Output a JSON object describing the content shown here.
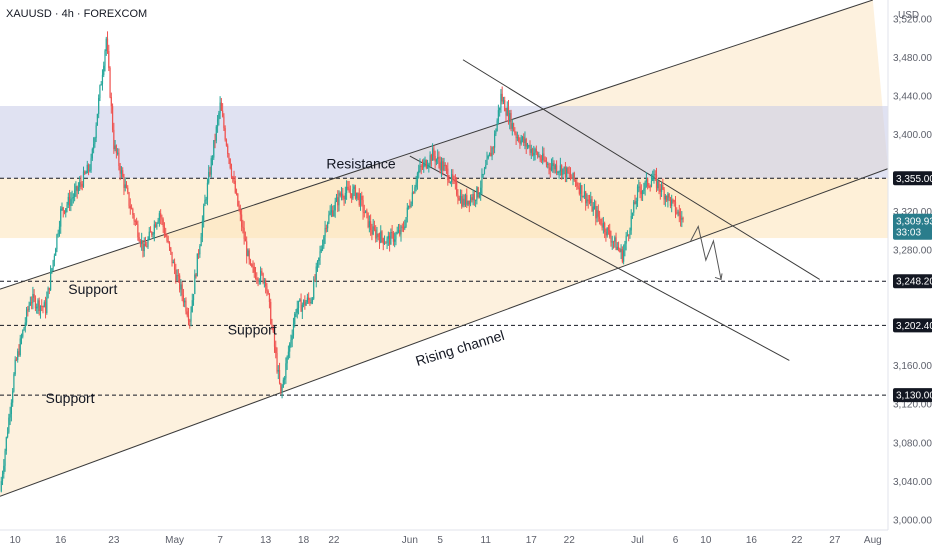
{
  "header": {
    "symbol_line": "XAUUSD · 4h · FOREXCOM"
  },
  "colors": {
    "up": "#26a69a",
    "down": "#ef5350",
    "last_price": "#2a7d8c",
    "level_tag": "#131722",
    "resistance_zone": "#c7cbe8",
    "support_zone": "#fde3b8",
    "channel_fill": "#fdf0da",
    "line": "#3a3a3a"
  },
  "chart_data": {
    "type": "candlestick",
    "timeframe": "4h",
    "currency_label": "USD",
    "y_ticks": [
      "3,520.00",
      "3,480.00",
      "3,440.00",
      "3,400.00",
      "3,320.00",
      "3,280.00",
      "3,160.00",
      "3,120.00",
      "3,080.00",
      "3,040.00",
      "3,000.00"
    ],
    "y_tick_values": [
      3520,
      3480,
      3440,
      3400,
      3320,
      3280,
      3160,
      3120,
      3080,
      3040,
      3000
    ],
    "x_ticks": [
      "10",
      "16",
      "23",
      "May",
      "7",
      "13",
      "18",
      "22",
      "Jun",
      "5",
      "11",
      "17",
      "22",
      "Jul",
      "6",
      "10",
      "16",
      "22",
      "27",
      "Aug"
    ],
    "x_tick_dates": [
      "2025-04-10",
      "2025-04-16",
      "2025-04-23",
      "2025-05-01",
      "2025-05-07",
      "2025-05-13",
      "2025-05-18",
      "2025-05-22",
      "2025-06-01",
      "2025-06-05",
      "2025-06-11",
      "2025-06-17",
      "2025-06-22",
      "2025-07-01",
      "2025-07-06",
      "2025-07-10",
      "2025-07-16",
      "2025-07-22",
      "2025-07-27",
      "2025-08-01"
    ],
    "ylim": [
      2990,
      3540
    ],
    "xlim": [
      "2025-04-08",
      "2025-08-03"
    ],
    "price_path": [
      [
        "2025-04-08",
        3030
      ],
      [
        "2025-04-10",
        3160
      ],
      [
        "2025-04-12",
        3230
      ],
      [
        "2025-04-14",
        3220
      ],
      [
        "2025-04-16",
        3320
      ],
      [
        "2025-04-18",
        3340
      ],
      [
        "2025-04-20",
        3370
      ],
      [
        "2025-04-22",
        3500
      ],
      [
        "2025-04-23",
        3390
      ],
      [
        "2025-04-25",
        3330
      ],
      [
        "2025-04-27",
        3280
      ],
      [
        "2025-04-29",
        3320
      ],
      [
        "2025-05-01",
        3260
      ],
      [
        "2025-05-03",
        3210
      ],
      [
        "2025-05-05",
        3330
      ],
      [
        "2025-05-07",
        3430
      ],
      [
        "2025-05-09",
        3340
      ],
      [
        "2025-05-11",
        3260
      ],
      [
        "2025-05-13",
        3250
      ],
      [
        "2025-05-15",
        3130
      ],
      [
        "2025-05-17",
        3220
      ],
      [
        "2025-05-19",
        3230
      ],
      [
        "2025-05-21",
        3310
      ],
      [
        "2025-05-23",
        3340
      ],
      [
        "2025-05-25",
        3340
      ],
      [
        "2025-05-27",
        3300
      ],
      [
        "2025-05-29",
        3290
      ],
      [
        "2025-05-31",
        3300
      ],
      [
        "2025-06-02",
        3360
      ],
      [
        "2025-06-04",
        3380
      ],
      [
        "2025-06-06",
        3360
      ],
      [
        "2025-06-08",
        3330
      ],
      [
        "2025-06-10",
        3340
      ],
      [
        "2025-06-12",
        3390
      ],
      [
        "2025-06-13",
        3440
      ],
      [
        "2025-06-15",
        3400
      ],
      [
        "2025-06-17",
        3385
      ],
      [
        "2025-06-19",
        3370
      ],
      [
        "2025-06-21",
        3365
      ],
      [
        "2025-06-23",
        3350
      ],
      [
        "2025-06-25",
        3325
      ],
      [
        "2025-06-27",
        3300
      ],
      [
        "2025-06-29",
        3275
      ],
      [
        "2025-07-01",
        3340
      ],
      [
        "2025-07-03",
        3355
      ],
      [
        "2025-07-05",
        3335
      ],
      [
        "2025-07-07",
        3310
      ]
    ],
    "horizontal_levels": [
      {
        "label": "3,355.00",
        "value": 3355
      },
      {
        "label": "3,248.20",
        "value": 3248.2
      },
      {
        "label": "3,202.40",
        "value": 3202.4
      },
      {
        "label": "3,130.00",
        "value": 3130
      }
    ],
    "last_price": {
      "label": "3,309.93",
      "countdown": "33:03",
      "value": 3309.93
    },
    "zones": [
      {
        "name": "resistance",
        "from": 3355,
        "to": 3430
      },
      {
        "name": "support",
        "from": 3293,
        "to": 3355
      }
    ],
    "annotations": [
      {
        "text": "Resistance",
        "date": "2025-05-21",
        "value": 3365
      },
      {
        "text": "Support",
        "date": "2025-04-17",
        "value": 3235
      },
      {
        "text": "Support",
        "date": "2025-05-08",
        "value": 3193
      },
      {
        "text": "Support",
        "date": "2025-04-14",
        "value": 3122
      },
      {
        "text": "Rising channel",
        "date": "2025-06-02",
        "value": 3160,
        "rotate": -17
      }
    ],
    "trendlines": [
      {
        "name": "channel-upper",
        "from": [
          "2025-04-08",
          3240
        ],
        "to": [
          "2025-08-01",
          3540
        ]
      },
      {
        "name": "channel-lower",
        "from": [
          "2025-04-08",
          3025
        ],
        "to": [
          "2025-08-03",
          3365
        ]
      },
      {
        "name": "descending-upper",
        "from": [
          "2025-06-08",
          3478
        ],
        "to": [
          "2025-07-25",
          3250
        ]
      },
      {
        "name": "descending-lower",
        "from": [
          "2025-06-01",
          3378
        ],
        "to": [
          "2025-07-21",
          3166
        ]
      }
    ],
    "projection": [
      [
        "2025-07-08",
        3290
      ],
      [
        "2025-07-09",
        3305
      ],
      [
        "2025-07-10",
        3270
      ],
      [
        "2025-07-11",
        3290
      ],
      [
        "2025-07-12",
        3250
      ]
    ]
  }
}
